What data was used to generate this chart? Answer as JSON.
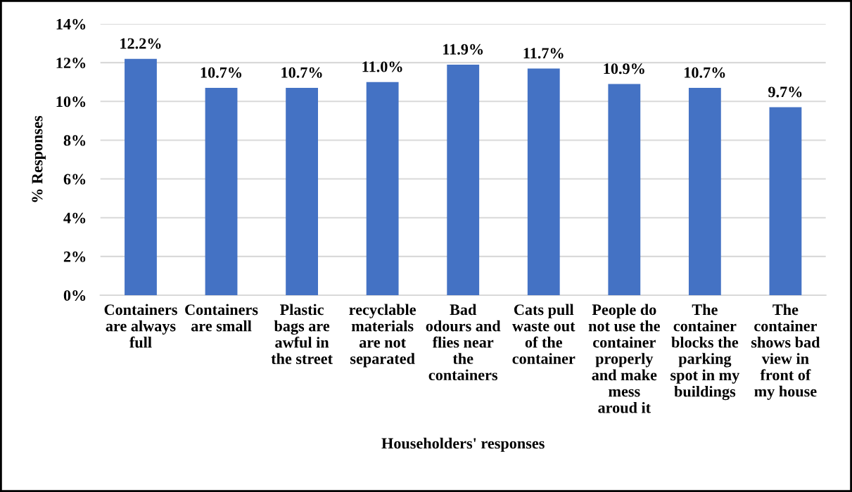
{
  "chart_data": {
    "type": "bar",
    "xlabel": "Householders' responses",
    "ylabel": "% Responses",
    "categories": [
      "Containers\nare always\nfull",
      "Containers\nare small",
      "Plastic\nbags are\nawful in\nthe street",
      "recyclable\nmaterials\nare not\nseparated",
      "Bad\nodours and\nflies near\nthe\ncontainers",
      "Cats pull\nwaste out\nof the\ncontainer",
      "People do\nnot use the\ncontainer\nproperly\nand make\nmess\naroud it",
      "The\ncontainer\nblocks the\nparking\nspot in my\nbuildings",
      "The\ncontainer\nshows bad\nview in\nfront of\nmy house"
    ],
    "values": [
      12.2,
      10.7,
      10.7,
      11.0,
      11.9,
      11.7,
      10.9,
      10.7,
      9.7
    ],
    "color": "#4472c4",
    "value_labels": [
      "12.2%",
      "10.7%",
      "10.7%",
      "11.0%",
      "11.9%",
      "11.7%",
      "10.9%",
      "10.7%",
      "9.7%"
    ],
    "ylim": [
      0,
      14
    ],
    "yticks": [
      {
        "value": 0,
        "label": "0%"
      },
      {
        "value": 2,
        "label": "2%"
      },
      {
        "value": 4,
        "label": "4%"
      },
      {
        "value": 6,
        "label": "6%"
      },
      {
        "value": 8,
        "label": "8%"
      },
      {
        "value": 10,
        "label": "10%"
      },
      {
        "value": 12,
        "label": "12%"
      },
      {
        "value": 14,
        "label": "14%"
      }
    ],
    "grid": "y"
  }
}
